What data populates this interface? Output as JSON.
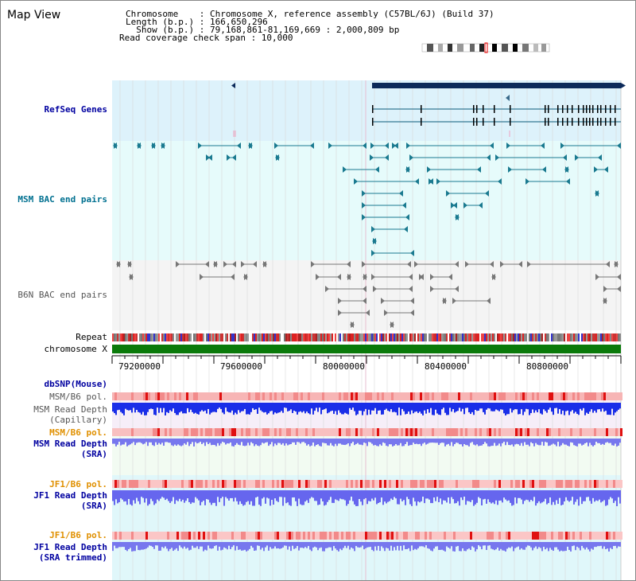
{
  "page": {
    "title": "Map View"
  },
  "header": {
    "chromosome_label": "Chromosome    : Chromosome X, reference assembly (C57BL/6J) (Build 37)",
    "length_label": "Length (b.p.) : 166,650,296",
    "show_label": "  Show (b.p.) : 79,168,861-81,169,669 : 2,000,809 bp",
    "coverage_label": "Read coverage check span : 10,000"
  },
  "tracks": {
    "refseq": "RefSeq Genes",
    "msm_bac": "MSM BAC end pairs",
    "b6n_bac": "B6N BAC end pairs",
    "repeat": "Repeat",
    "chromosome": "chromosome X",
    "dbsnp": "dbSNP(Mouse)",
    "msm_b6_pol_1": "MSM/B6 pol.",
    "msm_read_depth_cap_1": "MSM Read Depth",
    "msm_read_depth_cap_2": "(Capillary)",
    "msm_b6_pol_2": "MSM/B6 pol.",
    "msm_read_depth_sra_1": "MSM Read Depth",
    "msm_read_depth_sra_2": "(SRA)",
    "jf1_b6_pol_1": "JF1/B6 pol.",
    "jf1_read_depth_sra_1": "JF1 Read Depth",
    "jf1_read_depth_sra_2": "(SRA)",
    "jf1_b6_pol_2": "JF1/B6 pol.",
    "jf1_read_depth_trim_1": "JF1 Read Depth",
    "jf1_read_depth_trim_2": "(SRA trimmed)"
  },
  "axis": {
    "ticks": [
      "79200000",
      "79600000",
      "80000000",
      "80400000",
      "80800000"
    ]
  },
  "colors": {
    "refseq_bg": "#ddf2fb",
    "bac_bg": "#e6fbfb",
    "b6n_bg": "#f4f4f4",
    "gene": "#0c2a5a",
    "chromosome_bar": "#0a7a0a",
    "depth_dark": "#1a2ee8",
    "depth_light": "#7777ee",
    "pol_red": "#ee2222"
  }
}
